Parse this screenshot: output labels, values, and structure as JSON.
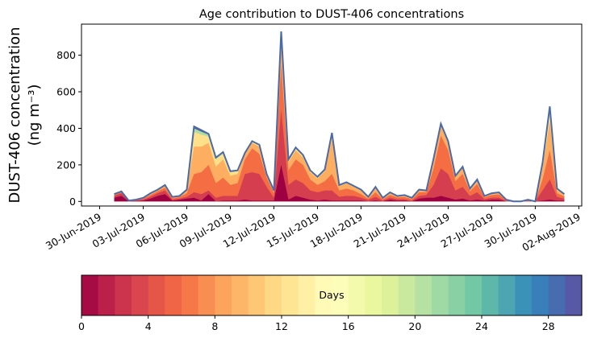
{
  "chart_data": {
    "type": "area",
    "title": "Age contribution to DUST-406 concentrations",
    "ylabel": "DUST-406 concentration",
    "ylabel_units": "(ng m⁻³)",
    "xlabel": "",
    "ylim": [
      -25,
      970
    ],
    "y_ticks": [
      0,
      200,
      400,
      600,
      800
    ],
    "x_range_days": [
      -1.25,
      33.2
    ],
    "x_ticks": [
      {
        "day": 0,
        "label": "30-Jun-2019"
      },
      {
        "day": 3,
        "label": "03-Jul-2019"
      },
      {
        "day": 6,
        "label": "06-Jul-2019"
      },
      {
        "day": 9,
        "label": "09-Jul-2019"
      },
      {
        "day": 12,
        "label": "12-Jul-2019"
      },
      {
        "day": 15,
        "label": "15-Jul-2019"
      },
      {
        "day": 18,
        "label": "18-Jul-2019"
      },
      {
        "day": 21,
        "label": "21-Jul-2019"
      },
      {
        "day": 24,
        "label": "24-Jul-2019"
      },
      {
        "day": 27,
        "label": "27-Jul-2019"
      },
      {
        "day": 30,
        "label": "30-Jul-2019"
      },
      {
        "day": 33,
        "label": "02-Aug-2019"
      }
    ],
    "series_note": "Stacked contributions by air-mass age (Days 0-30); total concentration shown as outline",
    "total": {
      "x_days": [
        1.0,
        1.5,
        2.0,
        2.5,
        3.0,
        3.5,
        4.0,
        4.5,
        5.0,
        5.5,
        6.0,
        6.5,
        7.0,
        7.5,
        8.0,
        8.5,
        9.0,
        9.5,
        10.0,
        10.5,
        11.0,
        11.5,
        12.0,
        12.5,
        13.0,
        13.5,
        14.0,
        14.5,
        15.0,
        15.5,
        16.0,
        16.5,
        17.0,
        17.5,
        18.0,
        18.5,
        19.0,
        19.5,
        20.0,
        20.5,
        21.0,
        21.5,
        22.0,
        22.5,
        23.0,
        23.5,
        24.0,
        24.5,
        25.0,
        25.5,
        26.0,
        26.5,
        27.0,
        27.5,
        28.0,
        28.5,
        29.0,
        29.5,
        30.0,
        30.5,
        31.0,
        31.5,
        32.0
      ],
      "values": [
        40,
        55,
        5,
        10,
        20,
        45,
        65,
        90,
        25,
        30,
        65,
        410,
        390,
        370,
        240,
        270,
        165,
        170,
        265,
        330,
        310,
        150,
        60,
        930,
        230,
        295,
        255,
        170,
        135,
        175,
        375,
        90,
        105,
        85,
        65,
        25,
        80,
        20,
        50,
        30,
        35,
        20,
        65,
        60,
        235,
        425,
        330,
        140,
        190,
        70,
        120,
        30,
        45,
        50,
        10,
        0,
        0,
        10,
        0,
        210,
        520,
        70,
        40
      ]
    },
    "layers": [
      {
        "age_max": 2,
        "color": "#9e0142",
        "values": [
          20,
          30,
          0,
          2,
          5,
          15,
          30,
          40,
          5,
          10,
          15,
          20,
          5,
          40,
          0,
          5,
          5,
          5,
          10,
          5,
          5,
          5,
          5,
          200,
          10,
          30,
          20,
          10,
          5,
          10,
          5,
          5,
          5,
          5,
          5,
          0,
          5,
          0,
          10,
          5,
          5,
          0,
          15,
          20,
          20,
          30,
          20,
          10,
          15,
          5,
          10,
          5,
          10,
          10,
          0,
          0,
          0,
          0,
          0,
          5,
          10,
          5,
          5
        ]
      },
      {
        "age_max": 5,
        "color": "#d53e4f",
        "values": [
          30,
          45,
          2,
          5,
          10,
          25,
          45,
          60,
          10,
          15,
          25,
          50,
          40,
          60,
          20,
          30,
          30,
          30,
          150,
          160,
          150,
          80,
          20,
          500,
          90,
          120,
          100,
          60,
          50,
          60,
          60,
          25,
          30,
          30,
          20,
          8,
          25,
          5,
          20,
          12,
          12,
          5,
          30,
          35,
          90,
          180,
          150,
          60,
          80,
          30,
          50,
          12,
          20,
          20,
          3,
          0,
          0,
          3,
          0,
          60,
          120,
          25,
          15
        ]
      },
      {
        "age_max": 9,
        "color": "#f46d43",
        "values": [
          36,
          50,
          4,
          8,
          15,
          35,
          55,
          75,
          18,
          24,
          45,
          150,
          160,
          200,
          100,
          130,
          90,
          100,
          230,
          290,
          260,
          130,
          45,
          750,
          170,
          230,
          200,
          120,
          90,
          110,
          150,
          60,
          70,
          60,
          40,
          15,
          50,
          12,
          35,
          22,
          24,
          12,
          50,
          50,
          180,
          360,
          280,
          110,
          150,
          55,
          95,
          22,
          35,
          38,
          7,
          0,
          0,
          7,
          0,
          120,
          280,
          45,
          28
        ]
      },
      {
        "age_max": 14,
        "color": "#fdae61",
        "values": [
          39,
          54,
          5,
          10,
          19,
          43,
          63,
          87,
          23,
          29,
          60,
          300,
          300,
          320,
          190,
          230,
          140,
          150,
          258,
          320,
          300,
          146,
          57,
          880,
          215,
          280,
          240,
          160,
          125,
          165,
          340,
          85,
          100,
          80,
          60,
          22,
          75,
          18,
          47,
          28,
          33,
          18,
          62,
          58,
          225,
          415,
          320,
          135,
          185,
          67,
          115,
          28,
          43,
          48,
          9,
          0,
          0,
          9,
          0,
          180,
          440,
          62,
          36
        ]
      },
      {
        "age_max": 20,
        "color": "#fee08b",
        "values": [
          40,
          55,
          5,
          10,
          20,
          45,
          65,
          90,
          25,
          30,
          64,
          380,
          365,
          355,
          230,
          262,
          160,
          165,
          264,
          328,
          308,
          149,
          59,
          920,
          228,
          292,
          252,
          168,
          133,
          173,
          370,
          89,
          104,
          84,
          64,
          25,
          79,
          20,
          50,
          30,
          35,
          20,
          64,
          60,
          233,
          423,
          328,
          139,
          189,
          69,
          119,
          30,
          45,
          50,
          10,
          0,
          0,
          10,
          0,
          200,
          500,
          68,
          39
        ]
      },
      {
        "age_max": 25,
        "color": "#abdda4",
        "values": [
          40,
          55,
          5,
          10,
          20,
          45,
          65,
          90,
          25,
          30,
          65,
          400,
          382,
          365,
          236,
          267,
          163,
          168,
          265,
          330,
          310,
          150,
          60,
          926,
          230,
          294,
          254,
          169,
          134,
          174,
          373,
          90,
          105,
          85,
          65,
          25,
          80,
          20,
          50,
          30,
          35,
          20,
          65,
          60,
          235,
          425,
          330,
          140,
          190,
          70,
          120,
          30,
          45,
          50,
          10,
          0,
          0,
          10,
          0,
          206,
          512,
          69,
          40
        ]
      },
      {
        "age_max": 30,
        "color": "#5e4fa2",
        "values": [
          40,
          55,
          5,
          10,
          20,
          45,
          65,
          90,
          25,
          30,
          65,
          410,
          390,
          370,
          240,
          270,
          165,
          170,
          265,
          330,
          310,
          150,
          60,
          930,
          230,
          295,
          255,
          170,
          135,
          175,
          375,
          90,
          105,
          85,
          65,
          25,
          80,
          20,
          50,
          30,
          35,
          20,
          65,
          60,
          235,
          425,
          330,
          140,
          190,
          70,
          120,
          30,
          45,
          50,
          10,
          0,
          0,
          10,
          0,
          210,
          520,
          70,
          40
        ]
      }
    ],
    "colorbar": {
      "label": "Days",
      "range": [
        0,
        30
      ],
      "ticks": [
        0,
        4,
        8,
        12,
        16,
        20,
        24,
        28
      ],
      "colors": [
        "#9e0142",
        "#d53e4f",
        "#f46d43",
        "#fdae61",
        "#fee08b",
        "#ffffbf",
        "#e6f598",
        "#abdda4",
        "#66c2a5",
        "#3288bd",
        "#5e4fa2"
      ]
    },
    "outline_color": "#4a6aa8"
  }
}
